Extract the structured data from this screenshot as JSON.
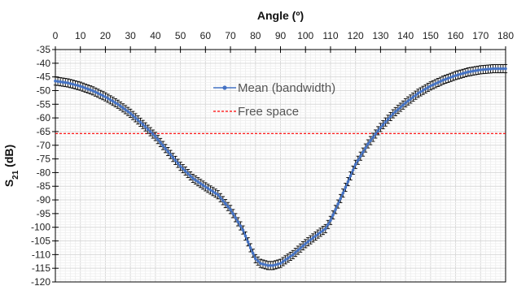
{
  "chart_data": {
    "type": "line",
    "xlabel": "Angle (º)",
    "ylabel_main": "S",
    "ylabel_sub": "21",
    "ylabel_unit": " (dB)",
    "xlim": [
      0,
      180
    ],
    "ylim": [
      -120,
      -35
    ],
    "x_ticks": [
      0,
      10,
      20,
      30,
      40,
      50,
      60,
      70,
      80,
      90,
      100,
      110,
      120,
      130,
      140,
      150,
      160,
      170,
      180
    ],
    "y_ticks": [
      -35,
      -40,
      -45,
      -50,
      -55,
      -60,
      -65,
      -70,
      -75,
      -80,
      -85,
      -90,
      -95,
      -100,
      -105,
      -110,
      -115,
      -120
    ],
    "x_axis_position": "top",
    "grid": true,
    "legend_position": "upper-center",
    "series": [
      {
        "name": "Mean (bandwidth)",
        "color": "#4472c4",
        "marker": "circle",
        "error_bar_halfwidth_db": 1.5,
        "x": [
          0,
          5,
          10,
          15,
          20,
          25,
          30,
          35,
          40,
          45,
          50,
          55,
          60,
          65,
          70,
          75,
          78,
          80,
          82,
          85,
          87,
          90,
          95,
          100,
          105,
          108,
          110,
          115,
          120,
          125,
          130,
          135,
          140,
          145,
          150,
          155,
          160,
          165,
          170,
          175,
          180
        ],
        "values": [
          -46.5,
          -47.2,
          -48.4,
          -50.1,
          -52.3,
          -55.0,
          -58.3,
          -62.4,
          -66.8,
          -72.3,
          -77.7,
          -82.1,
          -85.2,
          -88.1,
          -93.5,
          -101.0,
          -107.5,
          -111.5,
          -113.2,
          -114.0,
          -114.0,
          -113.2,
          -110.0,
          -106.0,
          -102.5,
          -100.5,
          -97.5,
          -87.5,
          -77.0,
          -69.5,
          -63.5,
          -58.5,
          -54.5,
          -51.0,
          -48.3,
          -46.2,
          -44.5,
          -43.2,
          -42.4,
          -42.0,
          -42.0
        ]
      },
      {
        "name": "Free space",
        "color": "#ff0000",
        "style": "dashed",
        "constant": -65.7
      }
    ]
  }
}
